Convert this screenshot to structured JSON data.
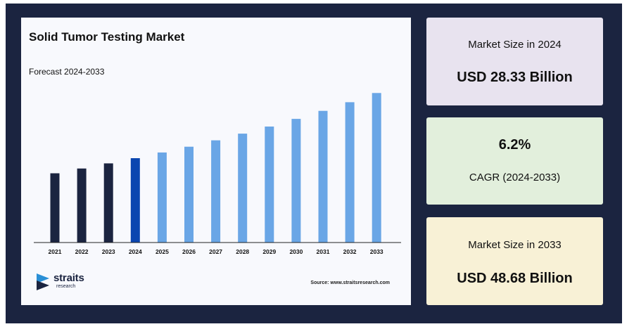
{
  "chart_data": {
    "type": "bar",
    "title": "Solid Tumor Testing Market",
    "subtitle": "Forecast 2024-2033",
    "categories": [
      "2021",
      "2022",
      "2023",
      "2024",
      "2025",
      "2026",
      "2027",
      "2028",
      "2029",
      "2030",
      "2031",
      "2032",
      "2033"
    ],
    "values": [
      23.6,
      25.1,
      26.7,
      28.33,
      30.1,
      31.9,
      33.9,
      36.0,
      38.2,
      40.6,
      43.1,
      45.8,
      48.68
    ],
    "ylim": [
      0,
      50
    ],
    "colors": {
      "historical": "#1b2440",
      "base_year": "#0b46b0",
      "forecast": "#6aa6e6"
    },
    "base_year_index": 3
  },
  "source": "Source: www.straitsresearch.com",
  "logo": {
    "word": "straits",
    "sub": "research",
    "icon": "straits-logo-icon"
  },
  "stats": [
    {
      "label": "Market Size in 2024",
      "value": "USD 28.33 Billion"
    },
    {
      "value": "6.2%",
      "label": "CAGR (2024-2033)"
    },
    {
      "label": "Market Size in 2033",
      "value": "USD 48.68 Billion"
    }
  ]
}
